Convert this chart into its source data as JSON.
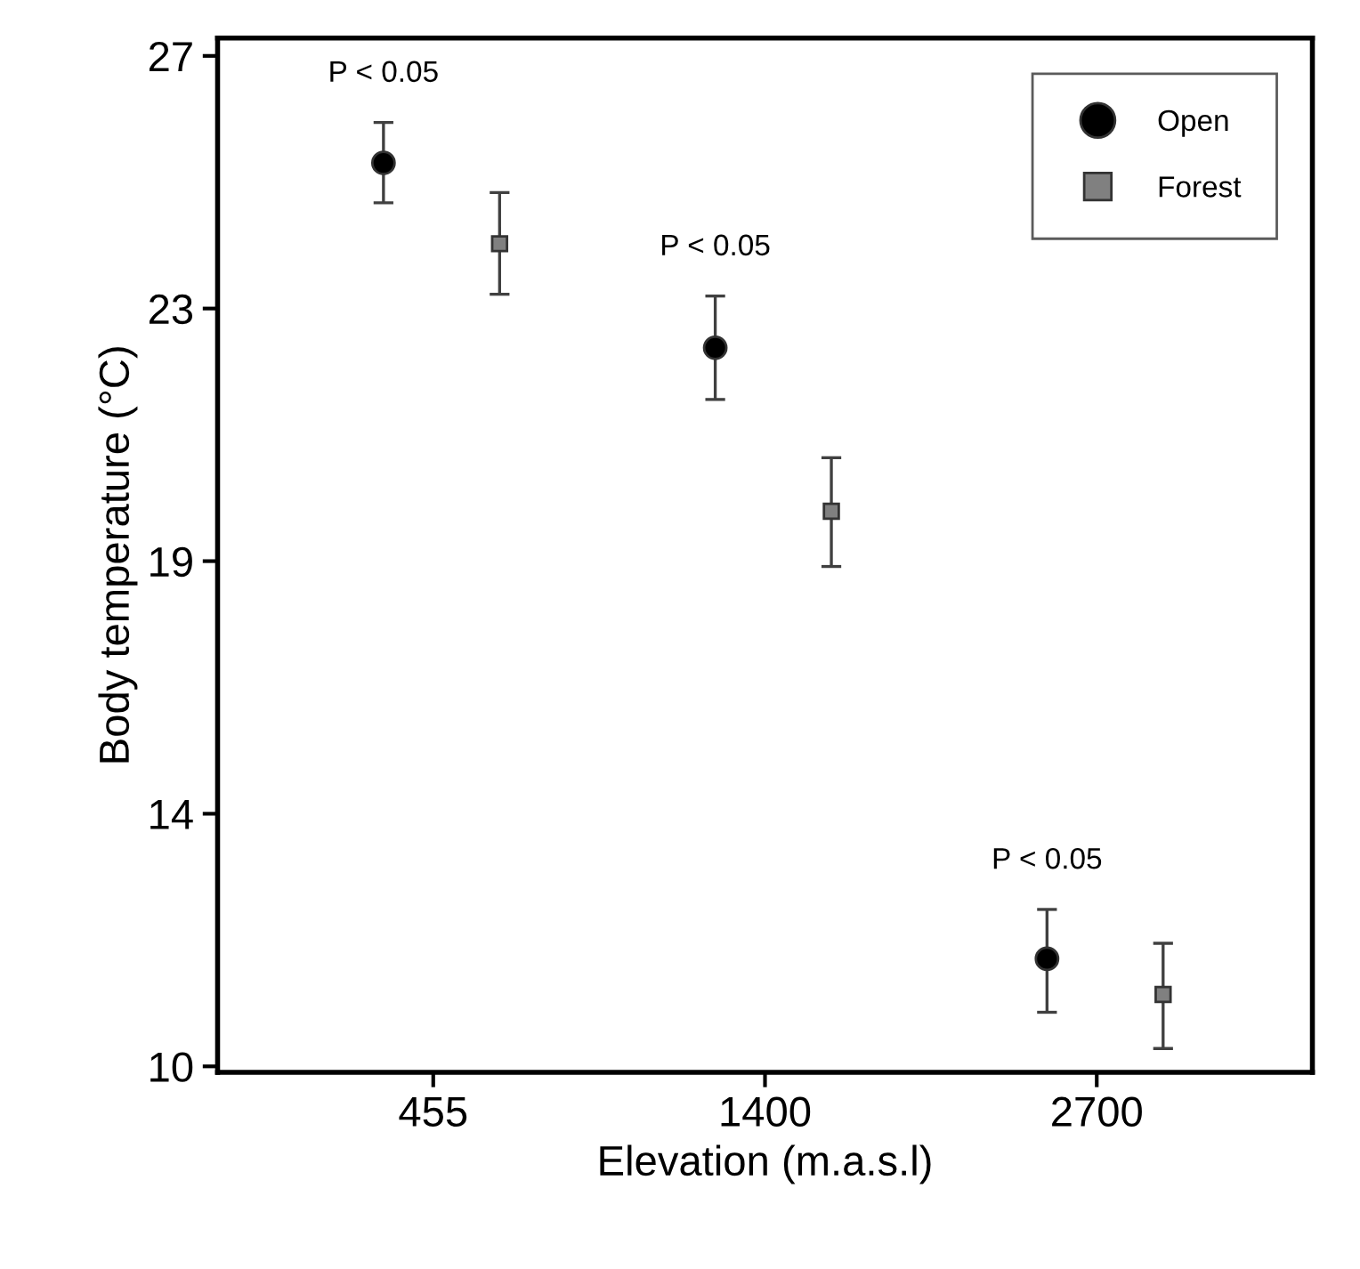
{
  "chart_data": {
    "type": "scatter",
    "xlabel": "Elevation (m.a.s.l)",
    "ylabel": "Body temperature (°C)",
    "categories": [
      "455",
      "1400",
      "2700"
    ],
    "series": [
      {
        "name": "Open",
        "color": "#000000",
        "marker": "circle",
        "values": [
          25.2,
          22.09,
          11.81
        ],
        "errors": [
          [
            24.53,
            25.88
          ],
          [
            21.22,
            22.96
          ],
          [
            10.91,
            12.64
          ]
        ]
      },
      {
        "name": "Forest",
        "color": "#808080",
        "marker": "square",
        "values": [
          23.84,
          19.34,
          11.21
        ],
        "errors": [
          [
            22.99,
            24.7
          ],
          [
            18.41,
            20.24
          ],
          [
            10.3,
            12.07
          ]
        ]
      }
    ],
    "ylim": [
      9.9,
      27.3
    ],
    "yticks": [
      10,
      {
        "value": 14.25,
        "label": "14"
      },
      {
        "value": 18.5,
        "label": "19"
      },
      {
        "value": 22.75,
        "label": "23"
      },
      27
    ],
    "annotations": [
      "P < 0.05",
      "P < 0.05",
      "P < 0.05"
    ],
    "legend": "top right",
    "grid": false
  }
}
